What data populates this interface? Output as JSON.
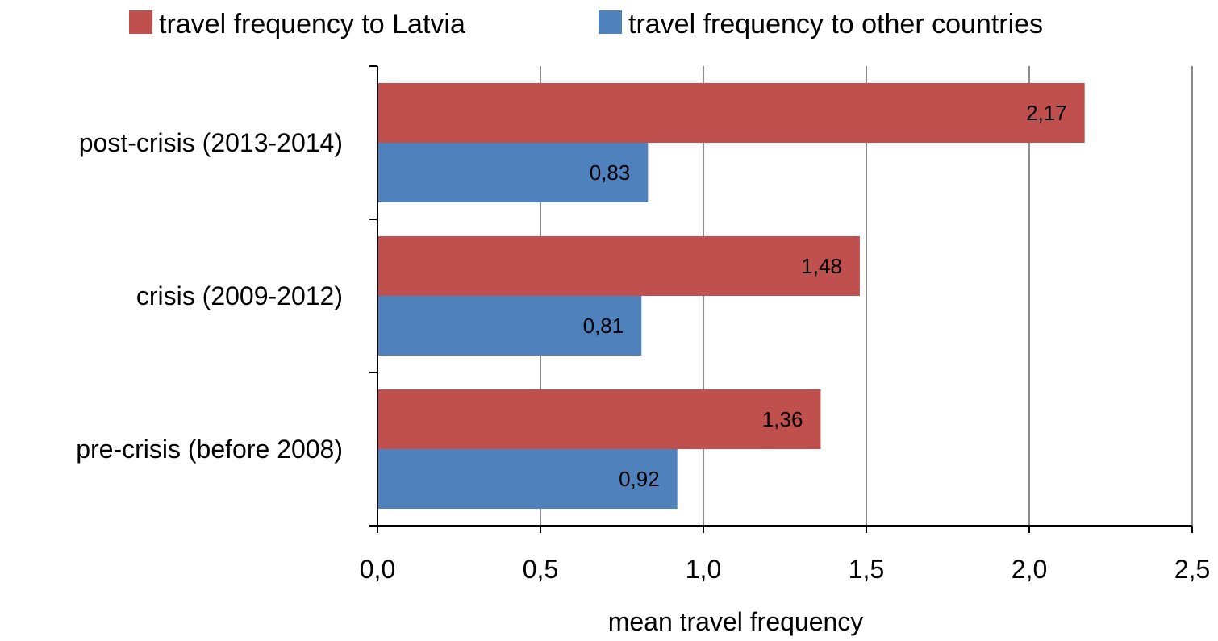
{
  "chart_data": {
    "type": "bar",
    "orientation": "horizontal",
    "categories": [
      "post-crisis (2013-2014)",
      "crisis (2009-2012)",
      "pre-crisis (before 2008)"
    ],
    "series": [
      {
        "name": "travel frequency to Latvia",
        "color": "#c0504d",
        "values": [
          2.17,
          1.48,
          1.36
        ],
        "labels": [
          "2,17",
          "1,48",
          "1,36"
        ]
      },
      {
        "name": "travel frequency to other countries",
        "color": "#4f81bd",
        "values": [
          0.83,
          0.81,
          0.92
        ],
        "labels": [
          "0,83",
          "0,81",
          "0,92"
        ]
      }
    ],
    "xlabel": "mean travel frequency",
    "xlim": [
      0,
      2.5
    ],
    "xticks": [
      0,
      0.5,
      1.0,
      1.5,
      2.0,
      2.5
    ],
    "xtick_labels": [
      "0,0",
      "0,5",
      "1,0",
      "1,5",
      "2,0",
      "2,5"
    ],
    "grid": "vertical",
    "legend_position": "top"
  }
}
